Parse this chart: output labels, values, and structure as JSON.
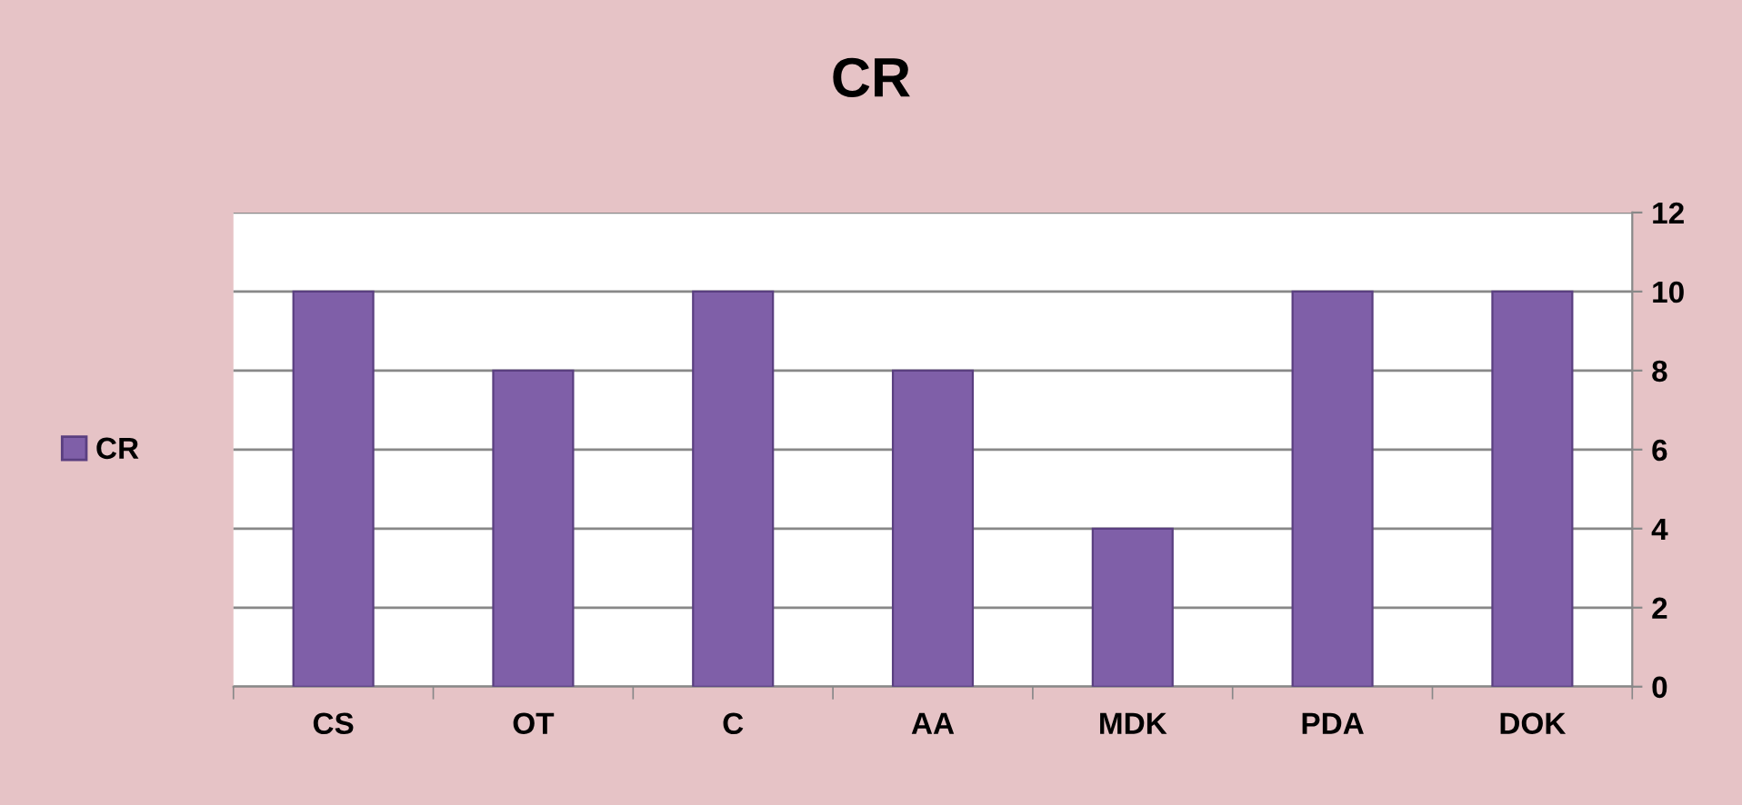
{
  "chart_data": {
    "type": "bar",
    "title": "CR",
    "categories": [
      "CS",
      "OT",
      "C",
      "AA",
      "MDK",
      "PDA",
      "DOK"
    ],
    "series": [
      {
        "name": "CR",
        "color": "#7f5fa8",
        "values": [
          10,
          8,
          10,
          8,
          4,
          10,
          10
        ]
      }
    ],
    "ylim": [
      0,
      12
    ],
    "yticks": [
      0,
      2,
      4,
      6,
      8,
      10,
      12
    ],
    "grid": "y",
    "legend": "left"
  }
}
